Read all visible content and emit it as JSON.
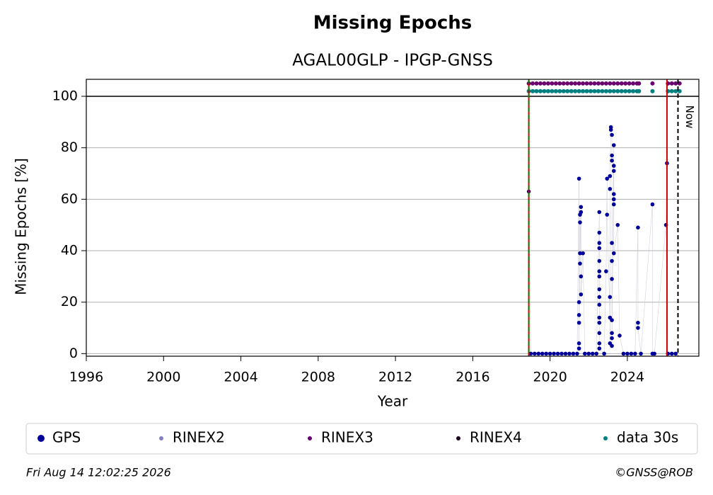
{
  "chart_data": {
    "type": "scatter",
    "title": "Missing Epochs",
    "subtitle": "AGAL00GLP - IPGP-GNSS",
    "x_label": "Year",
    "y_label": "Missing Epochs [%]",
    "xlim": [
      1996,
      2027.7
    ],
    "ylim": [
      -1,
      106.6
    ],
    "xticks": [
      1996,
      2000,
      2004,
      2008,
      2012,
      2016,
      2020,
      2024
    ],
    "yticks": [
      0,
      20,
      40,
      60,
      80,
      100
    ],
    "grid": true,
    "hlines": [
      {
        "y": 100,
        "color": "#000000"
      }
    ],
    "vlines": [
      {
        "x": 2018.9,
        "color": "#cc0000",
        "style": "solid"
      },
      {
        "x": 2018.9,
        "color": "#008000",
        "style": "dashed"
      },
      {
        "x": 2026.05,
        "color": "#cc0000",
        "style": "solid"
      },
      {
        "x": 2026.62,
        "color": "#000000",
        "style": "dashed",
        "label": "Now"
      }
    ],
    "series": [
      {
        "name": "GPS",
        "color": "#00009b",
        "x": [
          2018.9,
          2019.0,
          2019.2,
          2019.4,
          2019.6,
          2019.8,
          2020.0,
          2020.2,
          2020.4,
          2020.6,
          2020.8,
          2021.0,
          2021.2,
          2021.4,
          2021.5,
          2021.5,
          2021.5,
          2021.5,
          2021.5,
          2021.5,
          2021.55,
          2021.55,
          2021.55,
          2021.55,
          2021.6,
          2021.6,
          2021.6,
          2021.6,
          2021.7,
          2021.8,
          2022.0,
          2022.2,
          2022.4,
          2022.55,
          2022.55,
          2022.55,
          2022.55,
          2022.55,
          2022.55,
          2022.55,
          2022.55,
          2022.55,
          2022.55,
          2022.55,
          2022.55,
          2022.55,
          2022.55,
          2022.55,
          2022.8,
          2022.9,
          2022.95,
          2022.95,
          2023.1,
          2023.1,
          2023.1,
          2023.1,
          2023.1,
          2023.15,
          2023.15,
          2023.2,
          2023.2,
          2023.2,
          2023.2,
          2023.2,
          2023.2,
          2023.2,
          2023.2,
          2023.2,
          2023.2,
          2023.3,
          2023.3,
          2023.3,
          2023.3,
          2023.3,
          2023.3,
          2023.3,
          2023.5,
          2023.6,
          2023.8,
          2024.0,
          2024.2,
          2024.4,
          2024.55,
          2024.55,
          2024.55,
          2024.7,
          2025.3,
          2025.3,
          2025.4,
          2026.0,
          2026.05,
          2026.1,
          2026.3,
          2026.5
        ],
        "values": [
          63,
          0,
          0,
          0,
          0,
          0,
          0,
          0,
          0,
          0,
          0,
          0,
          0,
          0,
          68,
          20,
          15,
          12,
          4,
          2,
          54,
          51,
          39,
          35,
          57,
          55,
          30,
          23,
          39,
          0,
          0,
          0,
          0,
          55,
          47,
          43,
          41,
          36,
          32,
          30,
          25,
          22,
          19,
          14,
          12,
          8,
          4,
          2,
          0,
          32,
          68,
          54,
          14,
          22,
          4,
          64,
          69,
          88,
          87,
          85,
          77,
          75,
          43,
          36,
          29,
          13,
          8,
          6,
          3,
          81,
          73,
          71,
          62,
          60,
          58,
          39,
          50,
          7,
          0,
          0,
          0,
          0,
          49,
          12,
          10,
          0,
          58,
          0,
          0,
          50,
          74,
          0,
          0,
          0
        ]
      },
      {
        "name": "RINEX2",
        "color": "#8080c0",
        "x": [],
        "values": []
      },
      {
        "name": "RINEX3",
        "color": "#6b0070",
        "x": [
          2018.9,
          2019.1,
          2019.3,
          2019.5,
          2019.7,
          2019.9,
          2020.1,
          2020.3,
          2020.5,
          2020.7,
          2020.9,
          2021.1,
          2021.3,
          2021.5,
          2021.7,
          2021.9,
          2022.1,
          2022.3,
          2022.5,
          2022.7,
          2022.9,
          2023.1,
          2023.3,
          2023.5,
          2023.7,
          2023.9,
          2024.1,
          2024.3,
          2024.5,
          2024.6,
          2025.3,
          2026.1,
          2026.3,
          2026.5,
          2026.7
        ],
        "values": [
          105,
          105,
          105,
          105,
          105,
          105,
          105,
          105,
          105,
          105,
          105,
          105,
          105,
          105,
          105,
          105,
          105,
          105,
          105,
          105,
          105,
          105,
          105,
          105,
          105,
          105,
          105,
          105,
          105,
          105,
          105,
          105,
          105,
          105,
          105
        ]
      },
      {
        "name": "RINEX4",
        "color": "#200020",
        "x": [],
        "values": []
      },
      {
        "name": "data 30s",
        "color": "#008080",
        "x": [
          2018.9,
          2019.1,
          2019.3,
          2019.5,
          2019.7,
          2019.9,
          2020.1,
          2020.3,
          2020.5,
          2020.7,
          2020.9,
          2021.1,
          2021.3,
          2021.5,
          2021.7,
          2021.9,
          2022.1,
          2022.3,
          2022.5,
          2022.7,
          2022.9,
          2023.1,
          2023.3,
          2023.5,
          2023.7,
          2023.9,
          2024.1,
          2024.3,
          2024.5,
          2024.6,
          2025.3,
          2026.1,
          2026.3,
          2026.5,
          2026.7
        ],
        "values": [
          102,
          102,
          102,
          102,
          102,
          102,
          102,
          102,
          102,
          102,
          102,
          102,
          102,
          102,
          102,
          102,
          102,
          102,
          102,
          102,
          102,
          102,
          102,
          102,
          102,
          102,
          102,
          102,
          102,
          102,
          102,
          102,
          102,
          102,
          102
        ]
      }
    ],
    "footer_left": "Fri Aug 14 12:02:25 2026",
    "footer_right": "©GNSS@ROB"
  }
}
